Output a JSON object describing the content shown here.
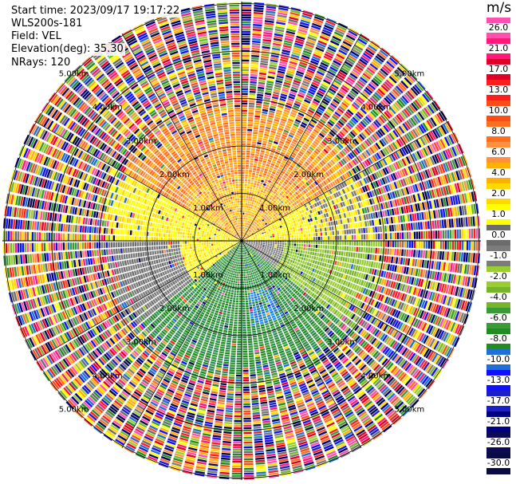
{
  "header": {
    "start_time": "Start time: 2023/09/17 19:17:22",
    "instrument": "WLS200s-181",
    "field": "Field: VEL",
    "elevation": "Elevation(deg): 35.30",
    "nrays": "NRays: 120"
  },
  "ring_labels": [
    "1.00km",
    "2.00km",
    "3.00km",
    "4.00km",
    "5.00km"
  ],
  "colorbar": {
    "unit": "m/s",
    "labels": [
      "26.0",
      "21.0",
      "17.0",
      "13.0",
      "10.0",
      "8.0",
      "6.0",
      "4.0",
      "2.0",
      "1.0",
      "0.0",
      "-1.0",
      "-2.0",
      "-4.0",
      "-6.0",
      "-8.0",
      "-10.0",
      "-13.0",
      "-17.0",
      "-21.0",
      "-26.0",
      "-30.0"
    ],
    "colors": [
      "#ff4fb0",
      "#ff1a7a",
      "#e00028",
      "#ff1e1e",
      "#ff4b16",
      "#ff6e1e",
      "#ff9040",
      "#ffb000",
      "#ffd800",
      "#ffff00",
      "#6c6c6c",
      "#7c7c7c",
      "#9acd32",
      "#76b52a",
      "#3a9a3a",
      "#228b22",
      "#1e6fd8",
      "#1010ff",
      "#1e1ec8",
      "#000080",
      "#0a0a55",
      "#0a0a44"
    ]
  }
}
